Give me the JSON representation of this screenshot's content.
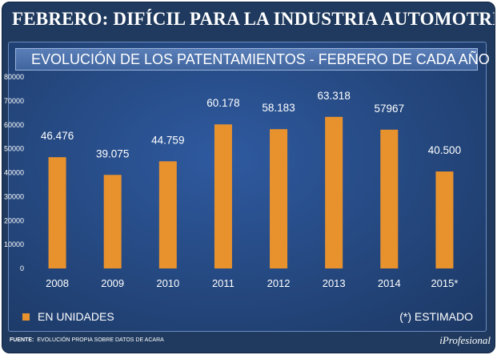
{
  "header": {
    "title": "FEBRERO: DIFÍCIL PARA LA INDUSTRIA AUTOMOTRIZ"
  },
  "chart_data": {
    "type": "bar",
    "title": "EVOLUCIÓN DE LOS PATENTAMIENTOS - FEBRERO DE CADA AÑO",
    "categories": [
      "2008",
      "2009",
      "2010",
      "2011",
      "2012",
      "2013",
      "2014",
      "2015*"
    ],
    "values": [
      46476,
      39075,
      44759,
      60178,
      58183,
      63318,
      57967,
      40500
    ],
    "data_labels": [
      "46.476",
      "39.075",
      "44.759",
      "60.178",
      "58.183",
      "63.318",
      "57967",
      "40.500"
    ],
    "ylim": [
      0,
      80000
    ],
    "yticks": [
      0,
      10000,
      20000,
      30000,
      40000,
      50000,
      60000,
      70000,
      80000
    ],
    "ytick_labels": [
      "0",
      "10000",
      "20000",
      "30000",
      "40000",
      "50000",
      "60000",
      "70000",
      "80000"
    ],
    "xlabel": "",
    "ylabel": "",
    "grid": false,
    "bar_color": "#e8922e",
    "legend": {
      "label": "EN UNIDADES",
      "placement": "bottom-left"
    },
    "note": "(*) ESTIMADO"
  },
  "footer": {
    "source_label": "FUENTE:",
    "source_text": "EVOLUCIÓN PROPIA SOBRE DATOS DE ACARA",
    "brand": "iProfesional"
  }
}
